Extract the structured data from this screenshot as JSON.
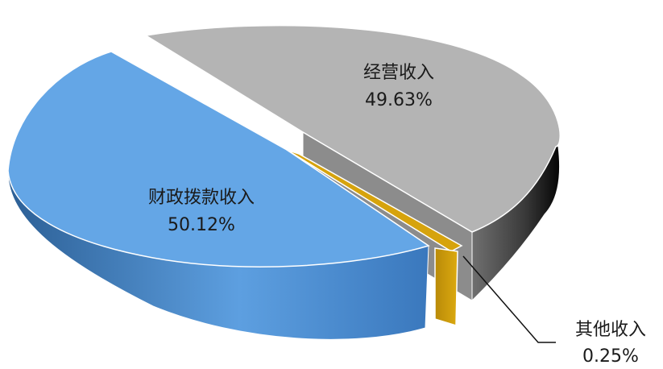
{
  "chart_data": {
    "type": "pie",
    "style": "3d-exploded",
    "slices": [
      {
        "label": "财政拨款收入",
        "value": 50.12,
        "display": "50.12%",
        "color": "#64a6e6"
      },
      {
        "label": "经营收入",
        "value": 49.63,
        "display": "49.63%",
        "color": "#b4b4b4"
      },
      {
        "label": "其他收入",
        "value": 0.25,
        "display": "0.25%",
        "color": "#d6a30d"
      }
    ]
  }
}
